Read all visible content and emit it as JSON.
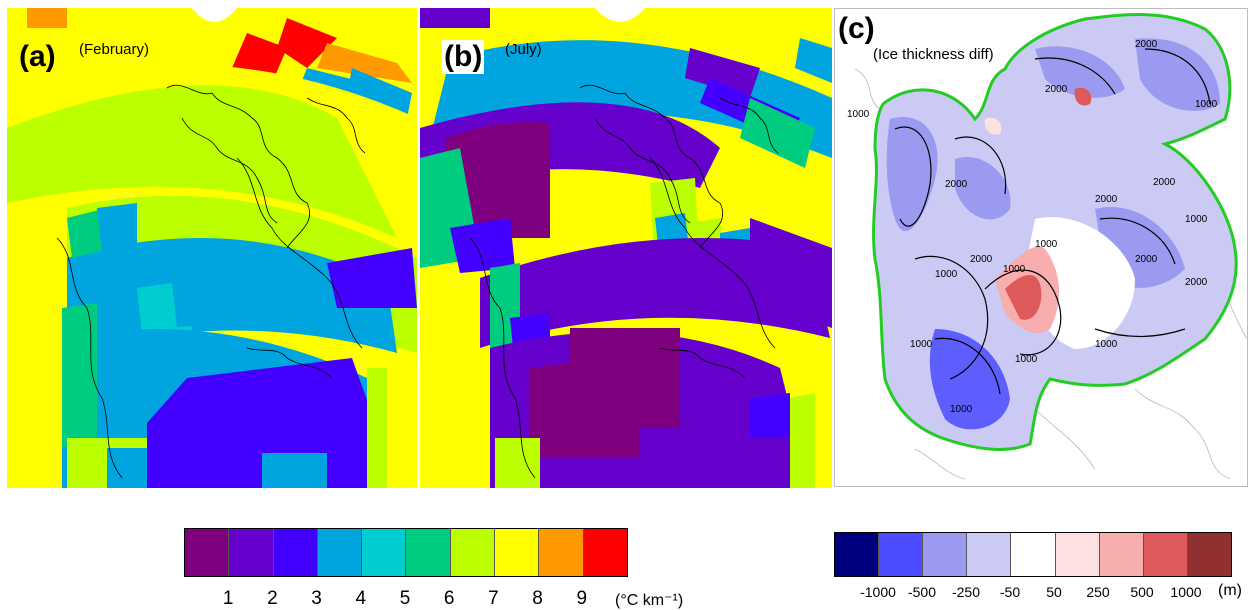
{
  "panels": [
    {
      "label": "(a)",
      "title": "(February)"
    },
    {
      "label": "(b)",
      "title": "(July)"
    },
    {
      "label": "(c)",
      "title": "(Ice thickness diff)"
    }
  ],
  "contour_labels": [
    "1000",
    "1000",
    "1000",
    "1000",
    "1000",
    "1000",
    "1000",
    "1000",
    "1000",
    "1000",
    "2000",
    "2000",
    "2000",
    "2000",
    "2000",
    "2000",
    "2000",
    "2000"
  ],
  "lapse_colorbar": {
    "colors": [
      "#7f007f",
      "#6600cc",
      "#4400ff",
      "#00a5e0",
      "#00cdd0",
      "#00cc80",
      "#bbff00",
      "#ffff00",
      "#ff9900",
      "#ff0000"
    ],
    "ticks": [
      "1",
      "2",
      "3",
      "4",
      "5",
      "6",
      "7",
      "8",
      "9"
    ],
    "unit": "(°C km⁻¹)"
  },
  "thickness_colorbar": {
    "colors": [
      "#00007f",
      "#4b4bff",
      "#9a9af0",
      "#cacaf5",
      "#ffffff",
      "#fde0e0",
      "#f8aeae",
      "#de5a5a",
      "#903030"
    ],
    "ticks": [
      "-1000",
      "-500",
      "-250",
      "-50",
      "50",
      "250",
      "500",
      "1000"
    ],
    "unit": "(m)"
  }
}
